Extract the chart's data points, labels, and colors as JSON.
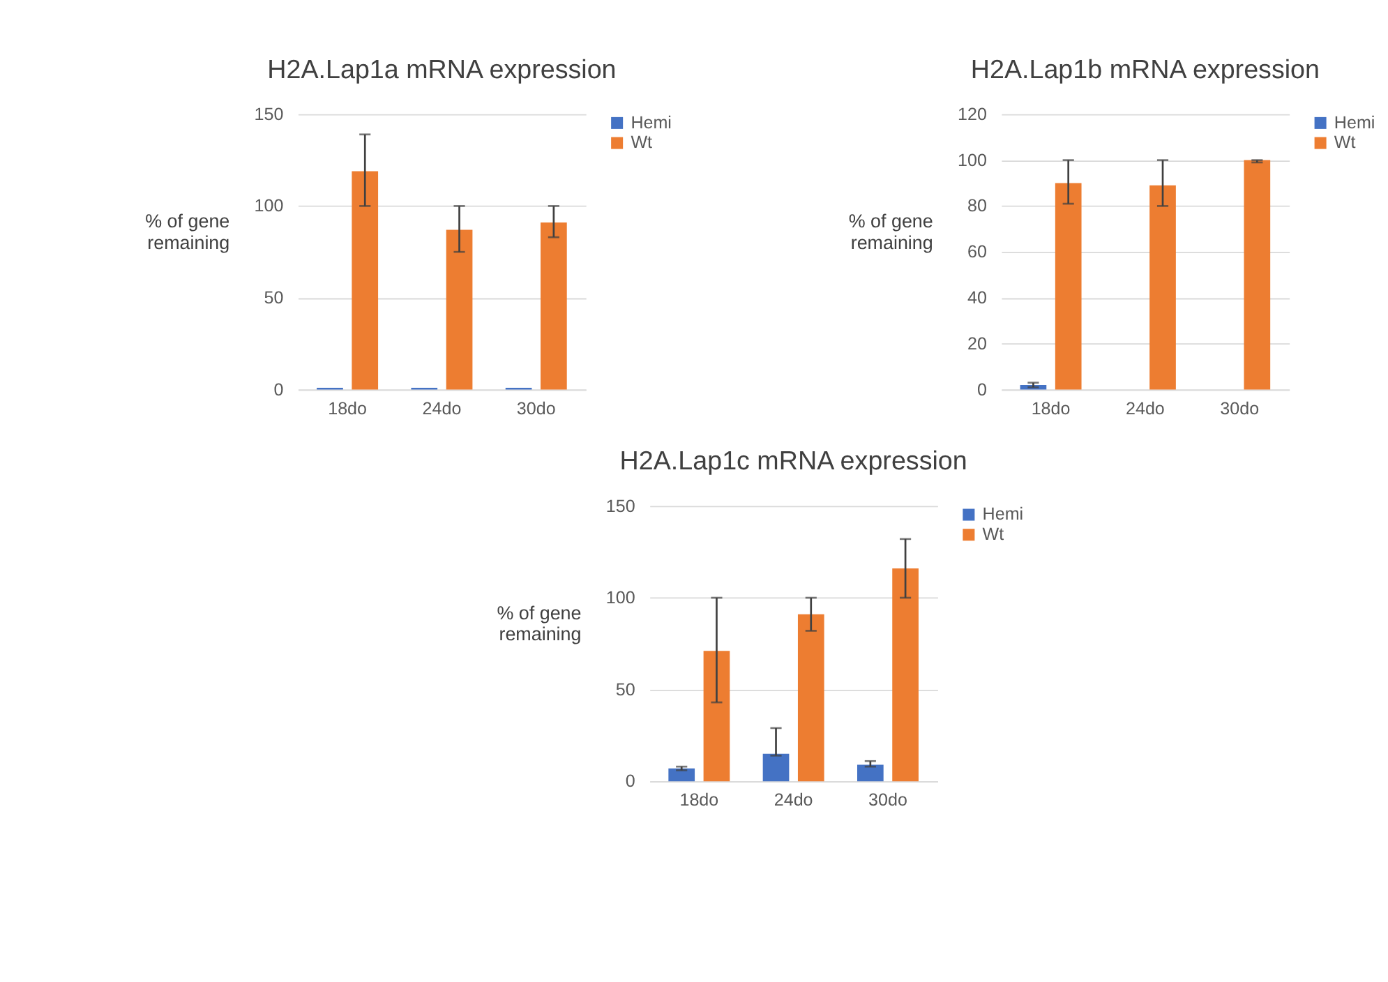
{
  "chart_data": [
    {
      "type": "bar",
      "title": "H2A.Lap1a mRNA expression",
      "ylabel": "% of gene remaining",
      "categories": [
        "18do",
        "24do",
        "30do"
      ],
      "series": [
        {
          "name": "Hemi",
          "color": "#4472c4",
          "values": [
            1,
            1,
            1
          ]
        },
        {
          "name": "Wt",
          "color": "#ed7d31",
          "values": [
            119,
            87,
            91
          ],
          "errors": [
            [
              100,
              139
            ],
            [
              75,
              100
            ],
            [
              83,
              100
            ]
          ]
        }
      ],
      "ylim": [
        0,
        150
      ],
      "yticks": [
        0,
        50,
        100,
        150
      ],
      "grid": "y",
      "legend": "right"
    },
    {
      "type": "bar",
      "title": "H2A.Lap1b mRNA expression",
      "ylabel": "% of gene remaining",
      "categories": [
        "18do",
        "24do",
        "30do"
      ],
      "series": [
        {
          "name": "Hemi",
          "color": "#4472c4",
          "values": [
            2,
            0,
            0
          ],
          "errors": [
            [
              1,
              3
            ],
            null,
            null
          ]
        },
        {
          "name": "Wt",
          "color": "#ed7d31",
          "values": [
            90,
            89,
            100
          ],
          "errors": [
            [
              81,
              100
            ],
            [
              80,
              100
            ],
            [
              99,
              100
            ]
          ]
        }
      ],
      "ylim": [
        0,
        120
      ],
      "yticks": [
        0,
        20,
        40,
        60,
        80,
        100,
        120
      ],
      "grid": "y",
      "legend": "right"
    },
    {
      "type": "bar",
      "title": "H2A.Lap1c mRNA expression",
      "ylabel": "% of gene remaining",
      "categories": [
        "18do",
        "24do",
        "30do"
      ],
      "series": [
        {
          "name": "Hemi",
          "color": "#4472c4",
          "values": [
            7,
            15,
            9
          ],
          "errors": [
            [
              6,
              8
            ],
            [
              14,
              29
            ],
            [
              8,
              11
            ]
          ]
        },
        {
          "name": "Wt",
          "color": "#ed7d31",
          "values": [
            71,
            91,
            116
          ],
          "errors": [
            [
              43,
              100
            ],
            [
              82,
              100
            ],
            [
              100,
              132
            ]
          ]
        }
      ],
      "ylim": [
        0,
        150
      ],
      "yticks": [
        0,
        50,
        100,
        150
      ],
      "grid": "y",
      "legend": "right"
    }
  ]
}
